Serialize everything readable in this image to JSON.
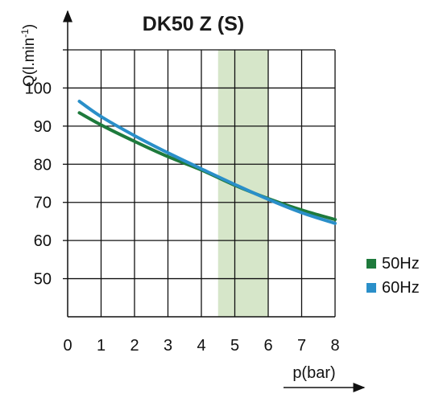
{
  "chart_data": {
    "type": "line",
    "title": "DK50 Z (S)",
    "xlabel": "p(bar)",
    "ylabel_main": "Q(l.min",
    "ylabel_sup": "-1",
    "ylabel_close": ")",
    "xlim": [
      0,
      8
    ],
    "ylim": [
      40,
      110
    ],
    "x_ticks": [
      "0",
      "1",
      "2",
      "3",
      "4",
      "5",
      "6",
      "7",
      "8"
    ],
    "y_ticks": [
      "50",
      "60",
      "70",
      "80",
      "90",
      "100"
    ],
    "grid": true,
    "highlight_band": {
      "x_from": 4.5,
      "x_to": 6,
      "color": "#d6e6c9"
    },
    "legend_position": "right",
    "series": [
      {
        "name": "50Hz",
        "color": "#1e7a3c",
        "points": [
          [
            0.35,
            93.5
          ],
          [
            1,
            90.3
          ],
          [
            2,
            86.0
          ],
          [
            3,
            82.0
          ],
          [
            4,
            78.5
          ],
          [
            5,
            74.5
          ],
          [
            6,
            71.0
          ],
          [
            7,
            68.0
          ],
          [
            8,
            65.5
          ]
        ]
      },
      {
        "name": "60Hz",
        "color": "#2a8fc9",
        "points": [
          [
            0.35,
            96.5
          ],
          [
            1,
            92.5
          ],
          [
            2,
            87.5
          ],
          [
            3,
            83.0
          ],
          [
            4,
            78.8
          ],
          [
            5,
            74.7
          ],
          [
            6,
            70.8
          ],
          [
            7,
            67.3
          ],
          [
            8,
            64.5
          ]
        ]
      }
    ]
  }
}
